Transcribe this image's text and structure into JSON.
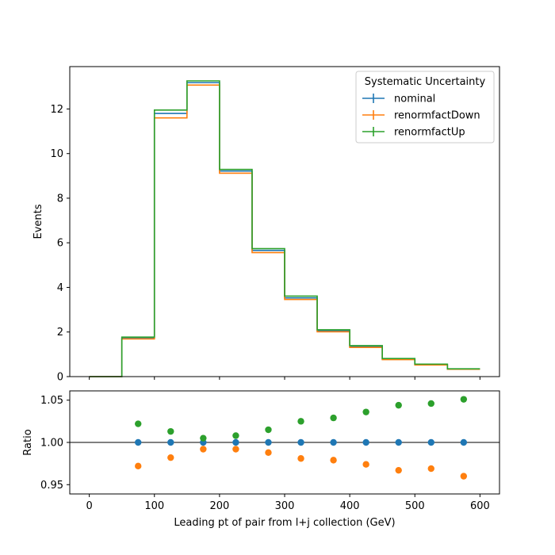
{
  "chart_data": {
    "type": "histogram",
    "title": "",
    "xlabel": "Leading pt of pair from l+j collection (GeV)",
    "bin_edges": [
      0,
      50,
      100,
      150,
      200,
      250,
      300,
      350,
      400,
      450,
      500,
      550,
      600
    ],
    "main": {
      "ylabel": "Events",
      "ylim": [
        0,
        13.9
      ],
      "yticks": [
        0,
        2,
        4,
        6,
        8,
        10,
        12
      ],
      "series": [
        {
          "name": "nominal",
          "color": "#1f77b4",
          "values": [
            0,
            1.74,
            11.8,
            13.18,
            9.22,
            5.66,
            3.53,
            2.05,
            1.35,
            0.78,
            0.54,
            0.34
          ]
        },
        {
          "name": "renormfactDown",
          "color": "#ff7f0e",
          "values": [
            0,
            1.69,
            11.6,
            13.07,
            9.12,
            5.56,
            3.46,
            2.01,
            1.31,
            0.76,
            0.52,
            0.33
          ]
        },
        {
          "name": "renormfactUp",
          "color": "#2ca02c",
          "values": [
            0,
            1.77,
            11.95,
            13.26,
            9.29,
            5.74,
            3.61,
            2.1,
            1.39,
            0.81,
            0.56,
            0.35
          ]
        }
      ]
    },
    "ratio": {
      "ylabel": "Ratio",
      "ylim": [
        0.939,
        1.061
      ],
      "yticks": [
        0.95,
        1.0,
        1.05
      ],
      "ytick_labels": [
        "0.95",
        "1.00",
        "1.05"
      ],
      "reference_line": 1.0,
      "x": [
        75,
        125,
        175,
        225,
        275,
        325,
        375,
        425,
        475,
        525,
        575
      ],
      "series": [
        {
          "name": "nominal",
          "color": "#1f77b4",
          "values": [
            1.0,
            1.0,
            1.0,
            1.0,
            1.0,
            1.0,
            1.0,
            1.0,
            1.0,
            1.0,
            1.0
          ]
        },
        {
          "name": "renormfactDown",
          "color": "#ff7f0e",
          "values": [
            0.972,
            0.982,
            0.992,
            0.992,
            0.988,
            0.981,
            0.979,
            0.974,
            0.967,
            0.969,
            0.96
          ]
        },
        {
          "name": "renormfactUp",
          "color": "#2ca02c",
          "values": [
            1.022,
            1.013,
            1.005,
            1.008,
            1.015,
            1.025,
            1.029,
            1.036,
            1.044,
            1.046,
            1.051
          ]
        }
      ]
    },
    "xlim": [
      -30,
      630
    ],
    "xticks": [
      0,
      100,
      200,
      300,
      400,
      500,
      600
    ],
    "legend": {
      "title": "Systematic Uncertainty",
      "placement": "top-right",
      "entries": [
        "nominal",
        "renormfactDown",
        "renormfactUp"
      ]
    }
  }
}
